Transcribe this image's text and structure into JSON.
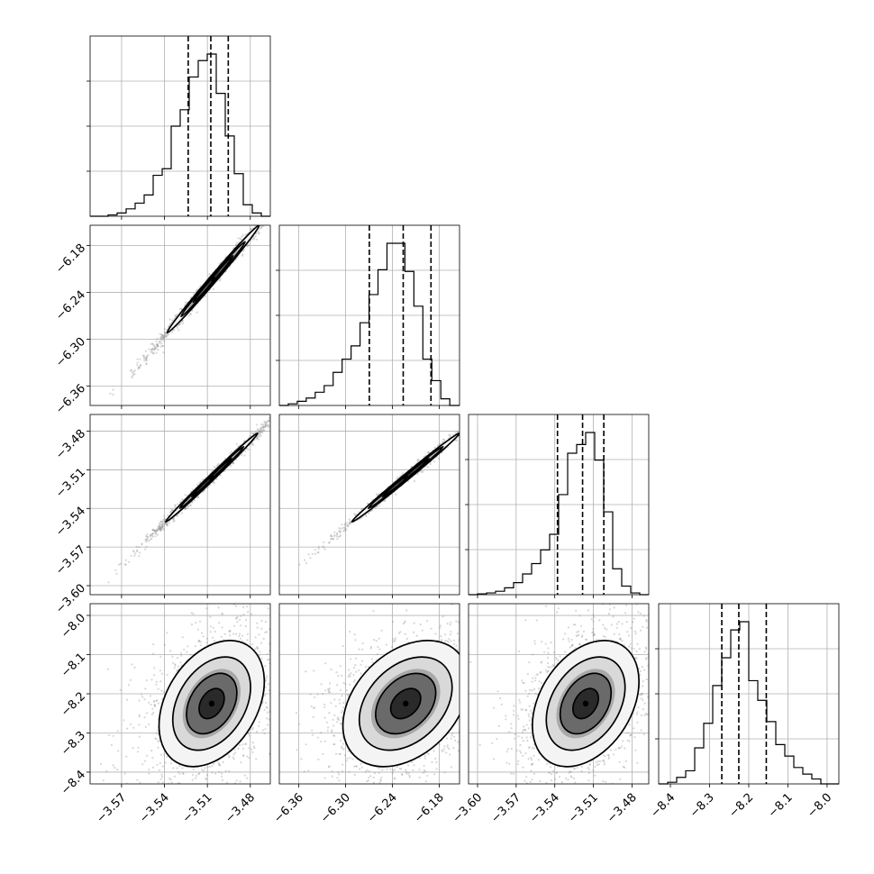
{
  "chart_data": {
    "type": "corner",
    "title": "",
    "parameters": [
      {
        "name": "",
        "ticks": [
          "−3.57",
          "−3.54",
          "−3.51",
          "−3.48"
        ],
        "tick_values": [
          -3.57,
          -3.54,
          -3.51,
          -3.48
        ],
        "range": [
          -3.592,
          -3.466
        ]
      },
      {
        "name": "",
        "ticks": [
          "−6.36",
          "−6.30",
          "−6.24",
          "−6.18"
        ],
        "tick_values": [
          -6.36,
          -6.3,
          -6.24,
          -6.18
        ],
        "range": [
          -6.385,
          -6.154
        ]
      },
      {
        "name": "",
        "ticks": [
          "−3.60",
          "−3.57",
          "−3.54",
          "−3.51",
          "−3.48"
        ],
        "tick_values": [
          -3.6,
          -3.57,
          -3.54,
          -3.51,
          -3.48
        ],
        "range": [
          -3.607,
          -3.467
        ]
      },
      {
        "name": "",
        "ticks": [
          "−8.4",
          "−8.3",
          "−8.2",
          "−8.1",
          "−8.0"
        ],
        "tick_values": [
          -8.4,
          -8.3,
          -8.2,
          -8.1,
          -8.0
        ],
        "range": [
          -8.43,
          -7.97
        ]
      }
    ],
    "histograms": [
      {
        "param": 0,
        "bin_edges": [
          -3.592,
          -3.5857,
          -3.5794,
          -3.5731,
          -3.5668,
          -3.5605,
          -3.5542,
          -3.5479,
          -3.5416,
          -3.5353,
          -3.529,
          -3.5227,
          -3.5164,
          -3.5101,
          -3.5038,
          -3.4975,
          -3.4912,
          -3.4849,
          -3.4786,
          -3.4723,
          -3.466
        ],
        "counts": [
          0.0,
          0.0,
          0.008,
          0.02,
          0.045,
          0.08,
          0.13,
          0.25,
          0.29,
          0.55,
          0.65,
          0.85,
          0.95,
          0.99,
          0.75,
          0.49,
          0.26,
          0.07,
          0.02,
          0.0
        ],
        "quantiles": [
          -3.5234,
          -3.5076,
          -3.4954
        ]
      },
      {
        "param": 1,
        "bin_edges": [
          -6.385,
          -6.3735,
          -6.362,
          -6.3505,
          -6.339,
          -6.3275,
          -6.316,
          -6.3045,
          -6.293,
          -6.2815,
          -6.27,
          -6.2585,
          -6.247,
          -6.2355,
          -6.224,
          -6.2125,
          -6.201,
          -6.1895,
          -6.178,
          -6.1665,
          -6.154
        ],
        "counts": [
          0.0,
          0.01,
          0.025,
          0.045,
          0.08,
          0.12,
          0.2,
          0.28,
          0.36,
          0.5,
          0.67,
          0.82,
          0.98,
          0.98,
          0.81,
          0.6,
          0.28,
          0.15,
          0.04,
          0.0
        ],
        "quantiles": [
          -6.2696,
          -6.2262,
          -6.1906
        ]
      },
      {
        "param": 2,
        "bin_edges": [
          -3.607,
          -3.6,
          -3.593,
          -3.586,
          -3.579,
          -3.572,
          -3.565,
          -3.558,
          -3.551,
          -3.544,
          -3.537,
          -3.53,
          -3.523,
          -3.516,
          -3.509,
          -3.502,
          -3.495,
          -3.488,
          -3.481,
          -3.474,
          -3.467
        ],
        "counts": [
          0.0,
          0.005,
          0.01,
          0.02,
          0.04,
          0.07,
          0.12,
          0.18,
          0.26,
          0.35,
          0.58,
          0.82,
          0.87,
          0.94,
          0.78,
          0.48,
          0.15,
          0.05,
          0.01,
          0.0
        ],
        "quantiles": [
          -3.5379,
          -3.5184,
          -3.5019
        ]
      },
      {
        "param": 3,
        "bin_edges": [
          -8.43,
          -8.407,
          -8.384,
          -8.361,
          -8.338,
          -8.315,
          -8.292,
          -8.269,
          -8.246,
          -8.223,
          -8.2,
          -8.177,
          -8.154,
          -8.131,
          -8.108,
          -8.085,
          -8.062,
          -8.039,
          -8.016,
          -7.993,
          -7.97
        ],
        "counts": [
          0.0,
          0.01,
          0.04,
          0.08,
          0.22,
          0.37,
          0.6,
          0.77,
          0.94,
          0.99,
          0.63,
          0.51,
          0.38,
          0.24,
          0.17,
          0.1,
          0.06,
          0.03,
          0.0,
          0.0
        ],
        "quantiles": [
          -8.2688,
          -8.2254,
          -8.1553
        ]
      }
    ],
    "pairs": [
      {
        "x_param": 0,
        "y_param": 1,
        "center": [
          -3.506,
          -6.223
        ],
        "spread": [
          0.014,
          0.03
        ],
        "correlation": 0.995,
        "contour_levels": [
          1.0,
          1.6,
          2.3
        ]
      },
      {
        "x_param": 0,
        "y_param": 2,
        "center": [
          -3.507,
          -3.516
        ],
        "spread": [
          0.014,
          0.015
        ],
        "correlation": 0.996,
        "contour_levels": [
          1.0,
          1.6,
          2.3
        ]
      },
      {
        "x_param": 1,
        "y_param": 2,
        "center": [
          -6.223,
          -3.516
        ],
        "spread": [
          0.03,
          0.015
        ],
        "correlation": 0.996,
        "contour_levels": [
          1.0,
          1.6,
          2.3
        ]
      },
      {
        "x_param": 0,
        "y_param": 3,
        "center": [
          -3.507,
          -8.225
        ],
        "spread": [
          0.016,
          0.07
        ],
        "correlation": 0.35,
        "contour_levels": [
          0.55,
          1.1,
          1.7,
          2.3
        ]
      },
      {
        "x_param": 1,
        "y_param": 3,
        "center": [
          -6.223,
          -8.225
        ],
        "spread": [
          0.035,
          0.07
        ],
        "correlation": 0.35,
        "contour_levels": [
          0.55,
          1.1,
          1.7,
          2.3
        ]
      },
      {
        "x_param": 2,
        "y_param": 3,
        "center": [
          -3.516,
          -8.225
        ],
        "spread": [
          0.018,
          0.07
        ],
        "correlation": 0.35,
        "contour_levels": [
          0.55,
          1.1,
          1.7,
          2.3
        ]
      }
    ],
    "grid": true,
    "colors": {
      "line": "#000000",
      "grid": "#b0b0b0",
      "points": "#8c8c8c",
      "density": "#000000"
    }
  }
}
